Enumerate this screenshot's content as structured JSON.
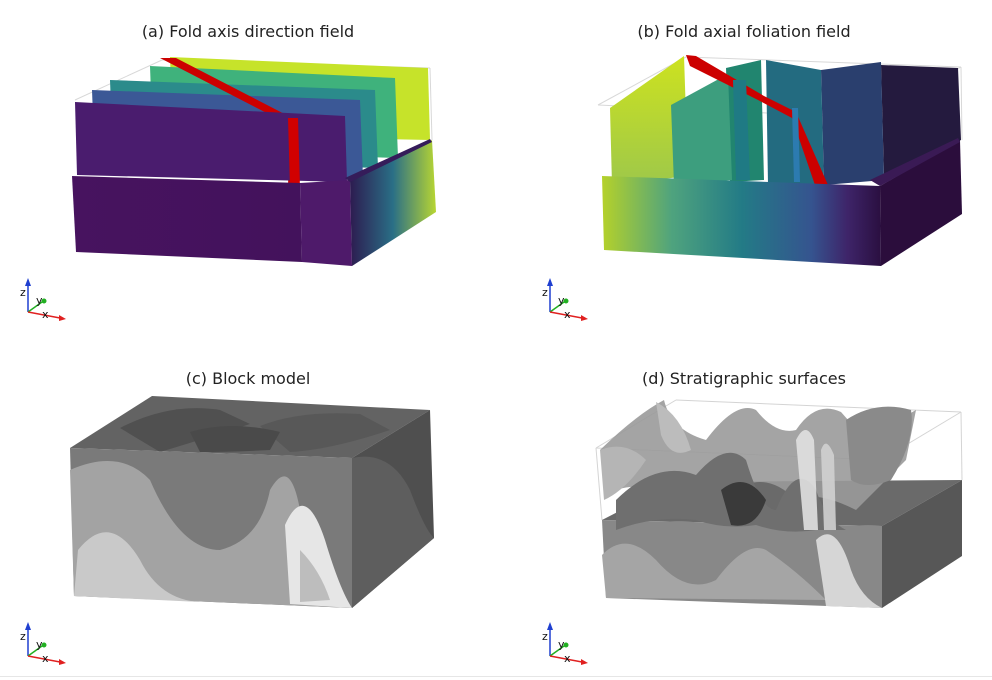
{
  "panels": [
    {
      "id": "a",
      "title": "(a) Fold axis direction field"
    },
    {
      "id": "b",
      "title": "(b) Fold axial foliation field"
    },
    {
      "id": "c",
      "title": "(c) Block model"
    },
    {
      "id": "d",
      "title": "(d) Stratigraphic surfaces"
    }
  ],
  "axes_labels": {
    "z": "z",
    "y": "y",
    "x": "x"
  },
  "colors": {
    "viridis_purple": "#440154",
    "viridis_blue": "#3b528b",
    "viridis_teal": "#21918c",
    "viridis_green": "#5ec962",
    "viridis_yellow": "#fde725",
    "highlight_red": "#d40000",
    "axis_z": "#1f3fd0",
    "axis_y": "#22b022",
    "axis_x": "#e02020"
  }
}
